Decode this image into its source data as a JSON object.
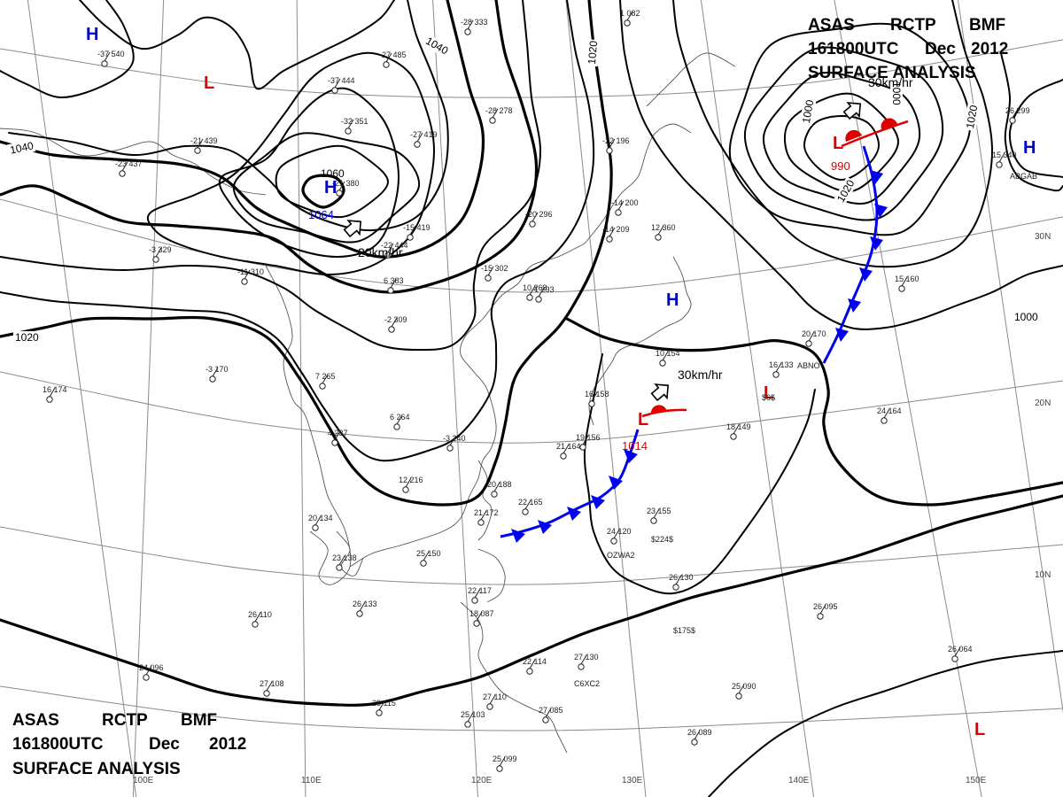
{
  "header_top": {
    "line1": [
      "ASAS",
      "RCTP",
      "BMF"
    ],
    "line2": [
      "161800UTC",
      "Dec",
      "2012"
    ],
    "line3": "SURFACE ANALYSIS"
  },
  "header_bottom": {
    "line1": [
      "ASAS",
      "RCTP",
      "BMF"
    ],
    "line2": [
      "161800UTC",
      "Dec",
      "2012"
    ],
    "line3": "SURFACE ANALYSIS"
  },
  "longitude_labels": [
    "100E",
    "110E",
    "120E",
    "130E",
    "140E",
    "150E"
  ],
  "latitude_labels": [
    "30N",
    "20N",
    "10N"
  ],
  "isobar_labels": [
    "1040",
    "1040",
    "1020",
    "1020",
    "1020",
    "1020",
    "1000",
    "1000",
    "1000"
  ],
  "pressure_systems": [
    {
      "letter": "H",
      "color": "#0000cc"
    },
    {
      "letter": "L",
      "color": "#dd0000"
    },
    {
      "letter": "H",
      "color": "#0000cc",
      "value": "1064"
    },
    {
      "letter": "H",
      "color": "#0000cc"
    },
    {
      "letter": "L",
      "color": "#dd0000",
      "value": "1014"
    },
    {
      "letter": "L",
      "color": "#dd0000",
      "value": "990"
    },
    {
      "letter": "L",
      "color": "#dd0000"
    },
    {
      "letter": "H",
      "color": "#0000cc"
    },
    {
      "letter": "L",
      "color": "#dd0000"
    }
  ],
  "isobar_extra_label": "1060",
  "movement_labels": [
    "20km/hr",
    "30km/hr",
    "30km/hr"
  ],
  "station_labels": [
    "ABGAB",
    "ABNO",
    "OZWA2",
    "C6XC2"
  ],
  "observations": [
    "-37 540",
    "-23 437",
    "-21 439",
    "-37 444",
    "-27 485",
    "-28 333",
    "-32 351",
    "-28 278",
    "-27 419",
    "-15 419",
    "-22 444",
    "-21 380",
    "-15 302",
    "-20 296",
    "-14 200",
    "-1 293",
    "-2 309",
    "-3 329",
    "-11 310",
    "6 264",
    "7 265",
    "4 237",
    "-3 240",
    "12 216",
    "20 188",
    "22 165",
    "21 164",
    "19 156",
    "16 158",
    "10 154",
    "16 133",
    "18 149",
    "24 164",
    "24 120",
    "23 155",
    "20 134",
    "23 138",
    "25 150",
    "22 117",
    "18 087",
    "26 133",
    "26 110",
    "27 130",
    "24 096",
    "27 108",
    "28 115",
    "25 103",
    "27 110",
    "25 099",
    "27 085",
    "26 130",
    "26 095",
    "25 090",
    "26 089",
    "26 064",
    "15 340",
    "16 174",
    "-3 170",
    "-14 209",
    "-22 196",
    "12 360",
    "10 263",
    "6 383",
    "15 160",
    "20 170",
    "26 299",
    "1 082",
    "21 172",
    "22 114"
  ],
  "extra_text": [
    "$224$",
    "$175$",
    "$6$"
  ],
  "colors": {
    "high": "#0000cc",
    "low": "#dd0000",
    "cold_front": "#0000ee",
    "warm_front": "#dd0000",
    "isobar": "#000000",
    "grid": "#8a8a8a"
  }
}
